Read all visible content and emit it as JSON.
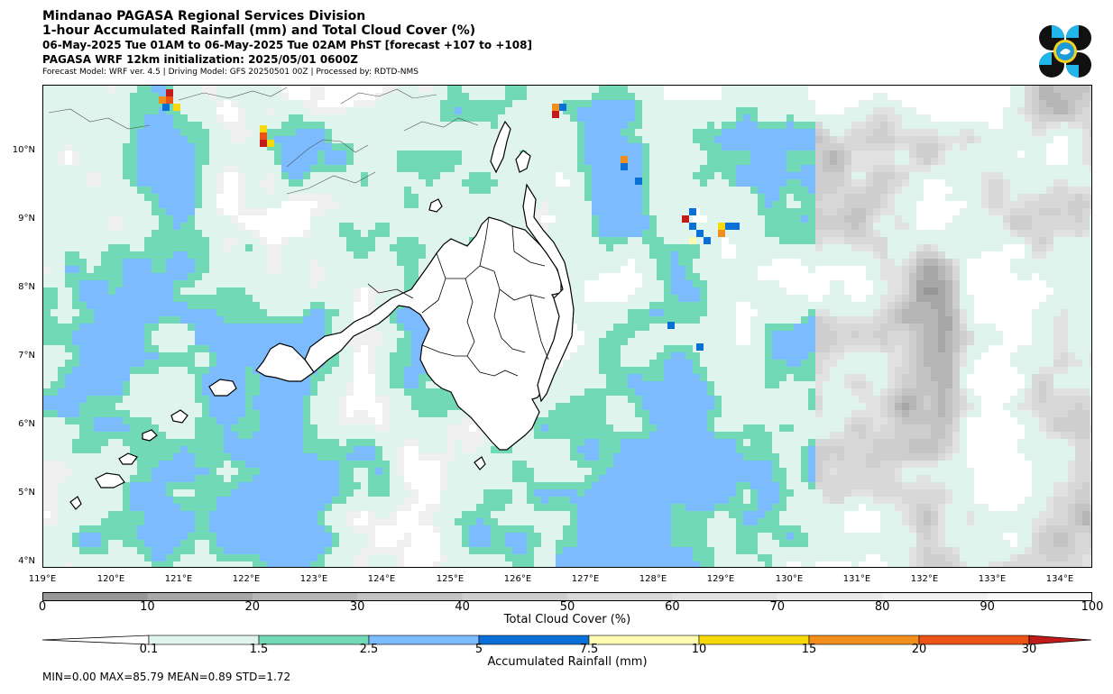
{
  "header": {
    "line1": "Mindanao PAGASA Regional Services Division",
    "line2": "1-hour Accumulated Rainfall (mm) and Total Cloud Cover (%)",
    "line3": "06-May-2025 Tue 01AM to 06-May-2025 Tue 02AM PhST [forecast +107 to +108]",
    "line4": "PAGASA WRF 12km initialization: 2025/05/01 0600Z",
    "line5": "Forecast Model: WRF ver. 4.5 | Driving Model: GFS 20250501 00Z | Processed by: RDTD-NMS"
  },
  "map": {
    "lat_labels": [
      "10°N",
      "9°N",
      "8°N",
      "7°N",
      "6°N",
      "5°N",
      "4°N"
    ],
    "lon_labels": [
      "119°E",
      "120°E",
      "121°E",
      "122°E",
      "123°E",
      "124°E",
      "125°E",
      "126°E",
      "127°E",
      "128°E",
      "129°E",
      "130°E",
      "131°E",
      "132°E",
      "133°E",
      "134°E"
    ]
  },
  "cloud_colorbar": {
    "title": "Total Cloud Cover (%)",
    "ticks": [
      "0",
      "10",
      "20",
      "30",
      "40",
      "50",
      "60",
      "70",
      "80",
      "90",
      "100"
    ],
    "colors": [
      "#979797",
      "#a7a7a7",
      "#b6b6b6",
      "#c3c3c3",
      "#cecece",
      "#d8d8d8",
      "#e1e1e1",
      "#e9e9e9",
      "#f0f0f0",
      "#f8f8f8"
    ]
  },
  "rain_colorbar": {
    "title": "Accumulated Rainfall (mm)",
    "ticks": [
      "0.1",
      "1.5",
      "2.5",
      "5",
      "7.5",
      "10",
      "15",
      "20",
      "30"
    ],
    "colors": [
      "#ffffff",
      "#dff4ec",
      "#72d9b7",
      "#7dbbff",
      "#0a70d8",
      "#fffbb0",
      "#f7d90a",
      "#f28e1c",
      "#ec5417",
      "#c21b1b"
    ]
  },
  "stats": "MIN=0.00   MAX=85.79   MEAN=0.89   STD=1.72"
}
